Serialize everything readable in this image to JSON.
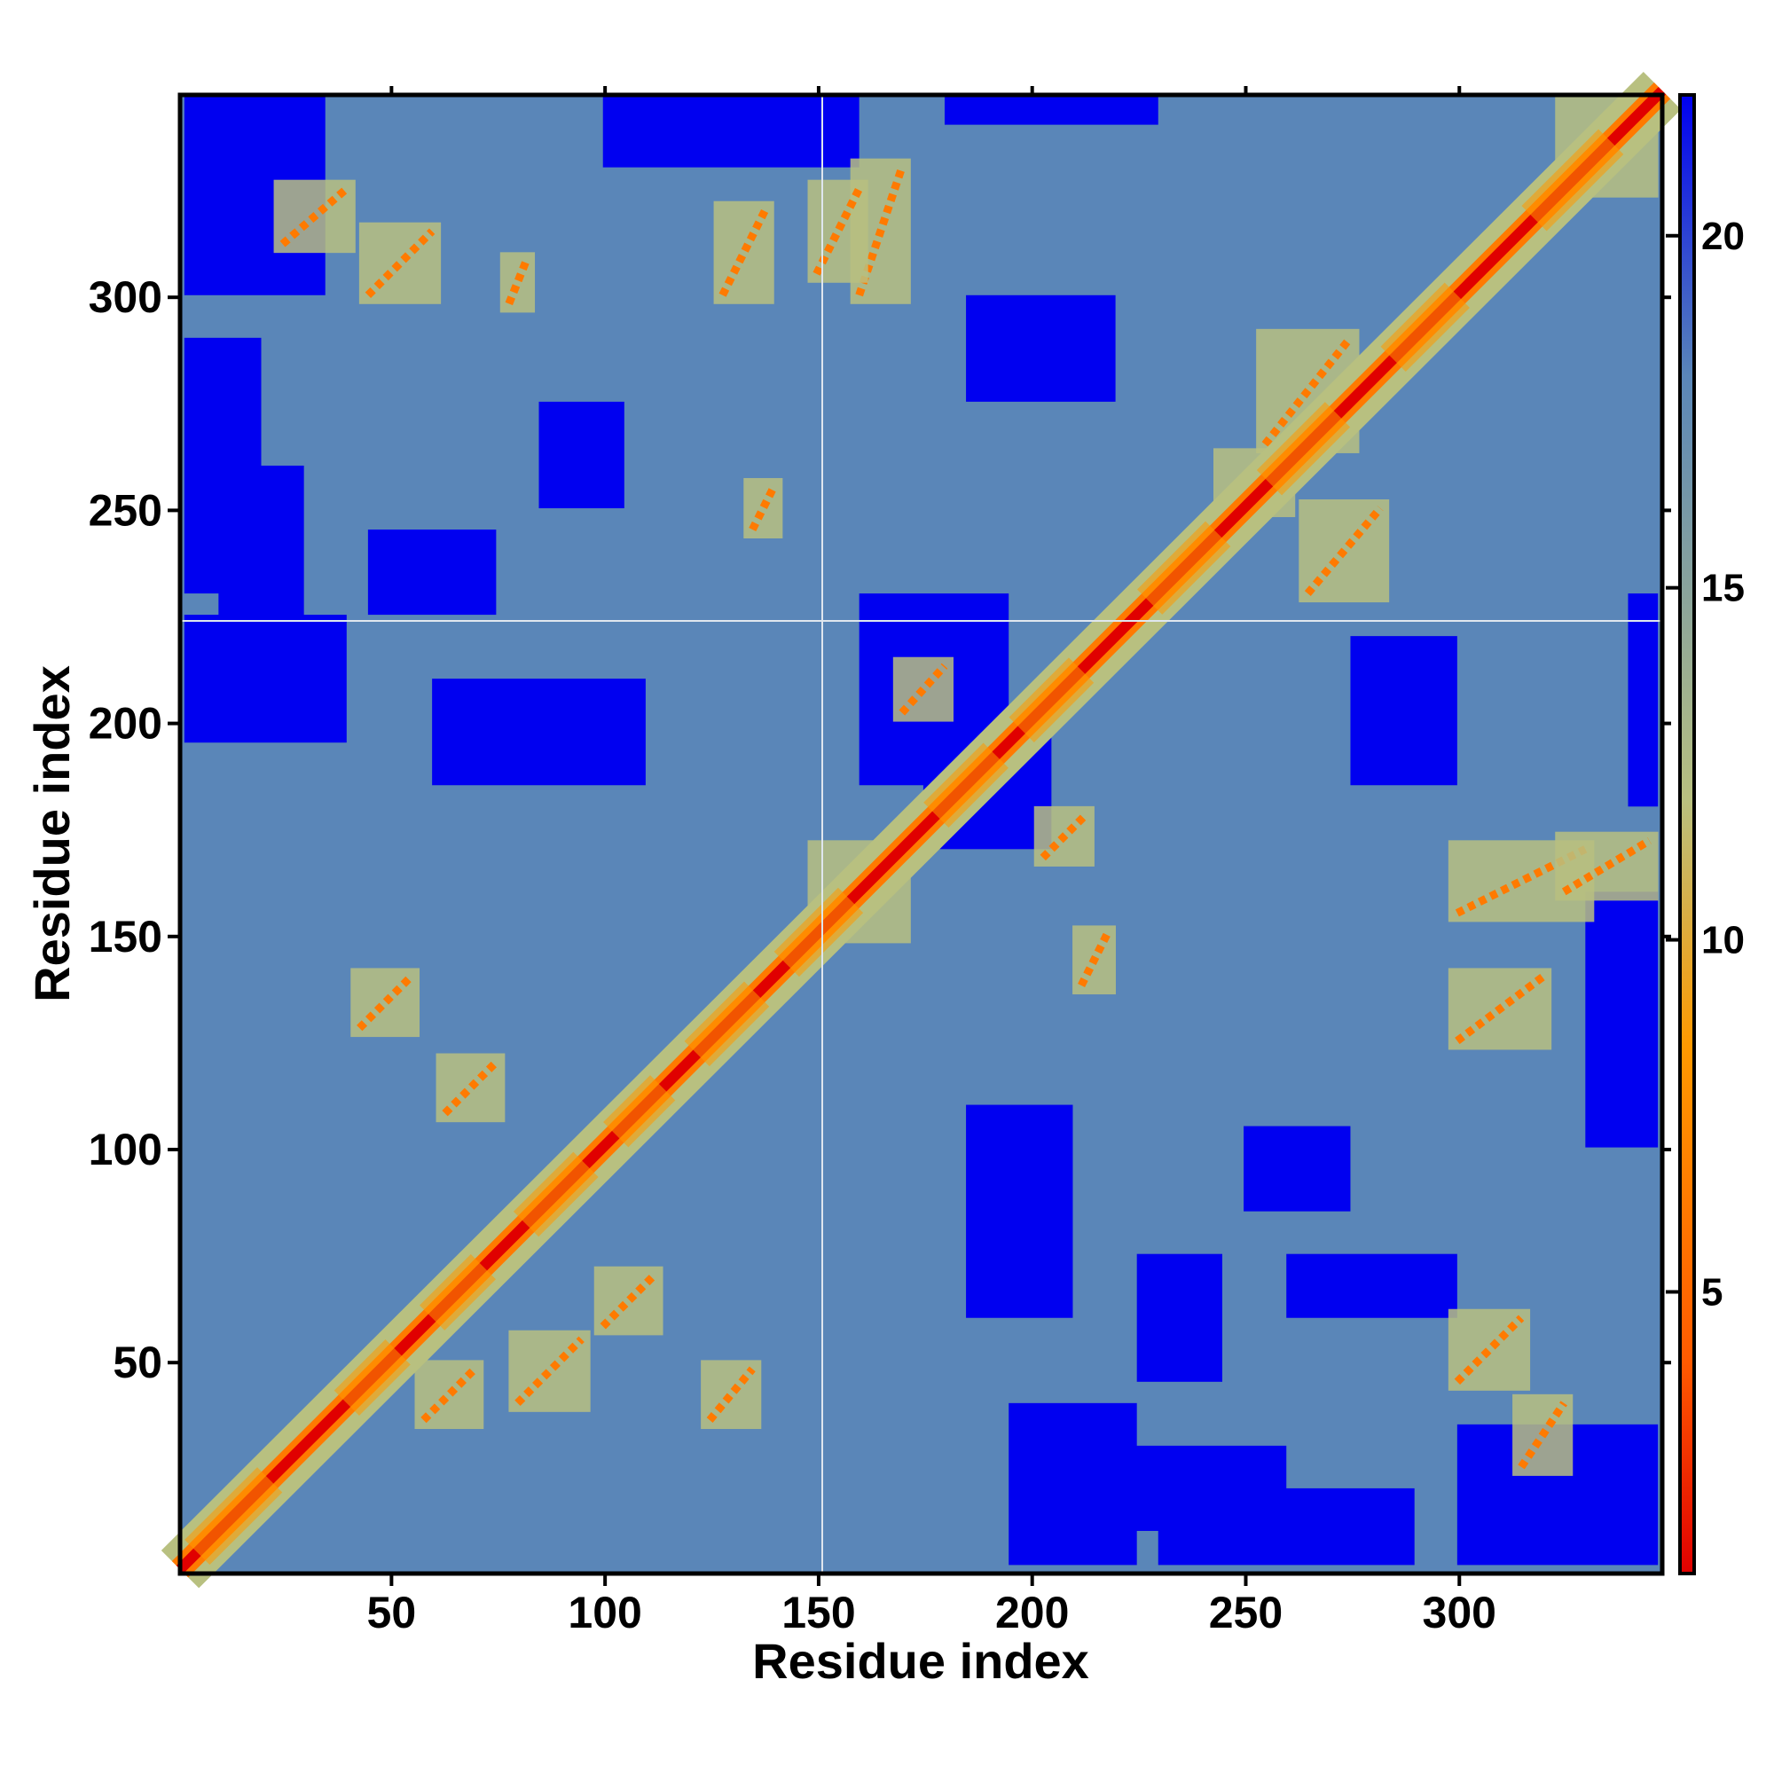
{
  "chart_data": {
    "type": "heatmap",
    "title": "",
    "xlabel": "Residue index",
    "ylabel": "Residue index",
    "n_residues": 347,
    "xlim": [
      1,
      347
    ],
    "ylim": [
      1,
      347
    ],
    "x_ticks": [
      50,
      100,
      150,
      200,
      250,
      300
    ],
    "y_ticks": [
      50,
      100,
      150,
      200,
      250,
      300
    ],
    "colorbar": {
      "ticks": [
        5,
        10,
        15,
        20
      ],
      "range": [
        1,
        22
      ],
      "colors": [
        "#e00000",
        "#ff5a00",
        "#ff9900",
        "#b8c080",
        "#5a86b8",
        "#0000f0"
      ],
      "stops": [
        1,
        4,
        8.5,
        12,
        18,
        22
      ]
    },
    "helix_segments": [
      [
        5,
        22
      ],
      [
        40,
        52
      ],
      [
        60,
        72
      ],
      [
        82,
        96
      ],
      [
        103,
        114
      ],
      [
        122,
        136
      ],
      [
        143,
        158
      ],
      [
        178,
        192
      ],
      [
        198,
        212
      ],
      [
        228,
        244
      ],
      [
        256,
        272
      ],
      [
        285,
        300
      ],
      [
        318,
        336
      ]
    ],
    "contact_bands": [
      {
        "i": [
          43,
          55
        ],
        "j": [
          128,
          140
        ]
      },
      {
        "i": [
          63,
          75
        ],
        "j": [
          108,
          120
        ]
      },
      {
        "i": [
          58,
          70
        ],
        "j": [
          36,
          48
        ]
      },
      {
        "i": [
          80,
          95
        ],
        "j": [
          40,
          55
        ]
      },
      {
        "i": [
          100,
          112
        ],
        "j": [
          58,
          70
        ]
      },
      {
        "i": [
          125,
          135
        ],
        "j": [
          36,
          48
        ]
      },
      {
        "i": [
          150,
          170
        ],
        "j": [
          150,
          170
        ]
      },
      {
        "i": [
          170,
          180
        ],
        "j": [
          202,
          213
        ]
      },
      {
        "i": [
          203,
          213
        ],
        "j": [
          168,
          178
        ]
      },
      {
        "i": [
          245,
          260
        ],
        "j": [
          250,
          262
        ]
      },
      {
        "i": [
          265,
          282
        ],
        "j": [
          230,
          250
        ]
      },
      {
        "i": [
          255,
          275
        ],
        "j": [
          265,
          290
        ]
      },
      {
        "i": [
          300,
          315
        ],
        "j": [
          45,
          60
        ]
      },
      {
        "i": [
          315,
          325
        ],
        "j": [
          25,
          40
        ]
      },
      {
        "i": [
          300,
          320
        ],
        "j": [
          125,
          140
        ]
      },
      {
        "i": [
          300,
          330
        ],
        "j": [
          155,
          170
        ]
      },
      {
        "i": [
          325,
          345
        ],
        "j": [
          160,
          172
        ]
      },
      {
        "i": [
          160,
          170
        ],
        "j": [
          300,
          330
        ]
      },
      {
        "i": [
          150,
          160
        ],
        "j": [
          305,
          325
        ]
      },
      {
        "i": [
          45,
          60
        ],
        "j": [
          300,
          315
        ]
      },
      {
        "i": [
          25,
          40
        ],
        "j": [
          312,
          325
        ]
      },
      {
        "i": [
          128,
          138
        ],
        "j": [
          300,
          320
        ]
      },
      {
        "i": [
          78,
          82
        ],
        "j": [
          298,
          308
        ]
      },
      {
        "i": [
          135,
          140
        ],
        "j": [
          245,
          255
        ]
      },
      {
        "i": [
          212,
          218
        ],
        "j": [
          138,
          150
        ]
      },
      {
        "i": [
          325,
          345
        ],
        "j": [
          325,
          345
        ]
      }
    ],
    "blue_regions": [
      {
        "i": [
          195,
          225
        ],
        "j": [
          2,
          40
        ]
      },
      {
        "i": [
          220,
          260
        ],
        "j": [
          10,
          30
        ]
      },
      {
        "i": [
          225,
          245
        ],
        "j": [
          45,
          75
        ]
      },
      {
        "i": [
          185,
          210
        ],
        "j": [
          60,
          110
        ]
      },
      {
        "i": [
          250,
          275
        ],
        "j": [
          85,
          105
        ]
      },
      {
        "i": [
          260,
          300
        ],
        "j": [
          60,
          75
        ]
      },
      {
        "i": [
          175,
          205
        ],
        "j": [
          170,
          200
        ]
      },
      {
        "i": [
          160,
          195
        ],
        "j": [
          185,
          230
        ]
      },
      {
        "i": [
          2,
          40
        ],
        "j": [
          195,
          225
        ]
      },
      {
        "i": [
          10,
          30
        ],
        "j": [
          220,
          260
        ]
      },
      {
        "i": [
          60,
          110
        ],
        "j": [
          185,
          210
        ]
      },
      {
        "i": [
          45,
          75
        ],
        "j": [
          225,
          245
        ]
      },
      {
        "i": [
          85,
          105
        ],
        "j": [
          250,
          275
        ]
      },
      {
        "i": [
          2,
          35
        ],
        "j": [
          300,
          347
        ]
      },
      {
        "i": [
          300,
          347
        ],
        "j": [
          2,
          35
        ]
      },
      {
        "i": [
          2,
          20
        ],
        "j": [
          230,
          290
        ]
      },
      {
        "i": [
          230,
          290
        ],
        "j": [
          2,
          20
        ]
      },
      {
        "i": [
          340,
          347
        ],
        "j": [
          180,
          230
        ]
      },
      {
        "i": [
          180,
          230
        ],
        "j": [
          340,
          347
        ]
      },
      {
        "i": [
          330,
          347
        ],
        "j": [
          100,
          160
        ]
      },
      {
        "i": [
          100,
          160
        ],
        "j": [
          330,
          347
        ]
      },
      {
        "i": [
          185,
          220
        ],
        "j": [
          275,
          300
        ]
      },
      {
        "i": [
          275,
          300
        ],
        "j": [
          185,
          220
        ]
      }
    ]
  }
}
